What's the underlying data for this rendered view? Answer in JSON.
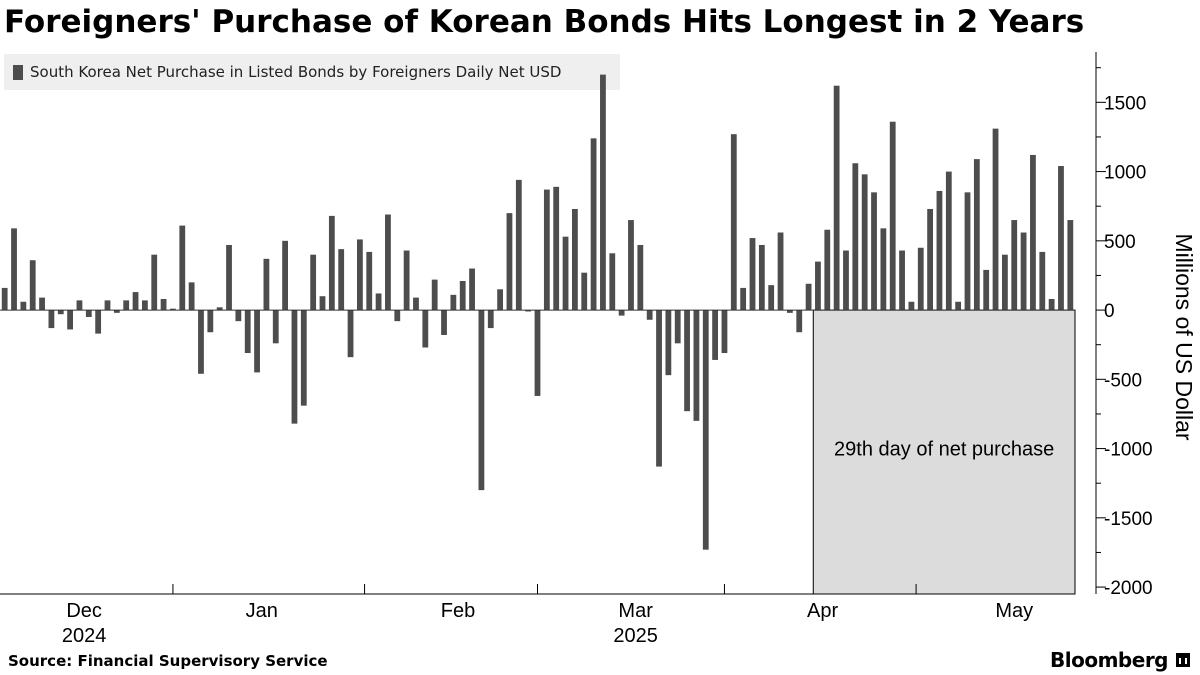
{
  "chart_data": {
    "type": "bar",
    "title": "Foreigners' Purchase of Korean Bonds Hits Longest in 2 Years",
    "legend": "South Korea Net Purchase in Listed Bonds by Foreigners Daily Net USD",
    "ylabel": "Millions of US Dollar",
    "ylim": [
      -2050,
      1950
    ],
    "yticks": [
      1500,
      1000,
      500,
      0,
      -500,
      -1000,
      -1500,
      -2000
    ],
    "ytick_labels": [
      "1500",
      "1000",
      "500",
      "0",
      "-500",
      "-1000",
      "-1500",
      "-2000"
    ],
    "yaxis_position": "right",
    "grid": false,
    "legend_position": "top-left",
    "series": [
      {
        "color": "#4d4d4d",
        "values": [
          160,
          590,
          60,
          360,
          90,
          -130,
          -30,
          -140,
          70,
          -50,
          -170,
          70,
          -20,
          70,
          130,
          70,
          400,
          80,
          10,
          610,
          200,
          -460,
          -160,
          20,
          470,
          -80,
          -310,
          -450,
          370,
          -240,
          500,
          -820,
          -690,
          400,
          100,
          680,
          440,
          -340,
          510,
          420,
          120,
          690,
          -80,
          430,
          90,
          -270,
          220,
          -180,
          110,
          210,
          300,
          -1300,
          -130,
          150,
          700,
          940,
          -10,
          -620,
          870,
          890,
          530,
          730,
          270,
          1240,
          1700,
          410,
          -40,
          650,
          470,
          -70,
          -1130,
          -470,
          -240,
          -730,
          -800,
          -1730,
          -360,
          -310,
          1270,
          160,
          520,
          470,
          180,
          560,
          -20,
          -160,
          190,
          350,
          580,
          1620,
          430,
          1060,
          980,
          850,
          590,
          1360,
          430,
          60,
          450,
          730,
          860,
          1000,
          60,
          850,
          1090,
          290,
          1310,
          400,
          650,
          560,
          1120,
          420,
          80,
          1040,
          650
        ]
      }
    ],
    "x_labels": [
      {
        "label": "Dec",
        "year": "2024",
        "index": 8.5
      },
      {
        "label": "Jan",
        "year": "",
        "index": 27.5
      },
      {
        "label": "Feb",
        "year": "",
        "index": 48.5
      },
      {
        "label": "Mar",
        "year": "2025",
        "index": 67.5
      },
      {
        "label": "Apr",
        "year": "",
        "index": 87.5
      },
      {
        "label": "May",
        "year": "",
        "index": 108
      }
    ],
    "x_tick_indices": [
      18.5,
      39,
      57.5,
      77.5,
      98
    ],
    "annotation": {
      "text": "29th day of net purchase",
      "from_index": 87,
      "to_index": 115,
      "y_from": 0,
      "y_to": -2050
    }
  },
  "footer": {
    "source": "Source: Financial Supervisory Service",
    "brand": "Bloomberg"
  }
}
